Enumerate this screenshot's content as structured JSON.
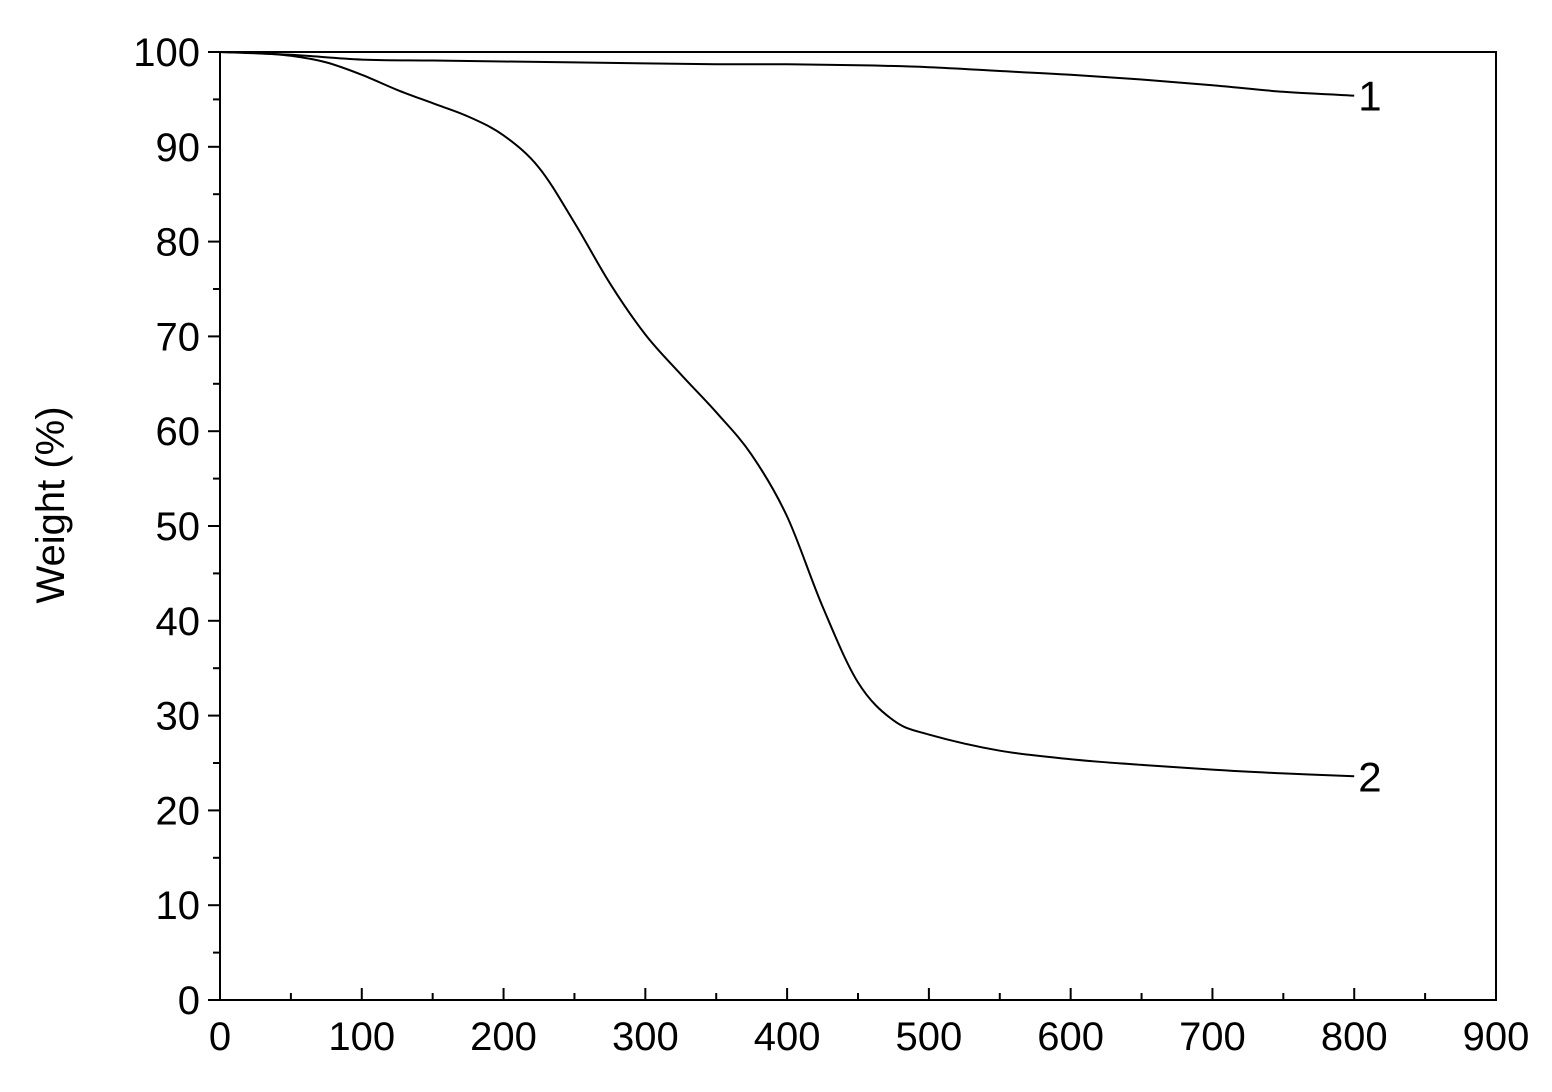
{
  "chart_data": {
    "type": "line",
    "title": "",
    "xlabel": "",
    "ylabel": "Weight (%)",
    "xlim": [
      0,
      900
    ],
    "ylim": [
      0,
      100
    ],
    "x_ticks": [
      0,
      100,
      200,
      300,
      400,
      500,
      600,
      700,
      800,
      900
    ],
    "y_ticks": [
      0,
      10,
      20,
      30,
      40,
      50,
      60,
      70,
      80,
      90,
      100
    ],
    "x_tick_labels": [
      "0",
      "100",
      "200",
      "300",
      "400",
      "500",
      "600",
      "700",
      "800",
      "900"
    ],
    "y_tick_labels": [
      "0",
      "10",
      "20",
      "30",
      "40",
      "50",
      "60",
      "70",
      "80",
      "90",
      "100"
    ],
    "grid": false,
    "colors": {
      "line": "#000000",
      "axis": "#000000"
    },
    "series": [
      {
        "name": "1",
        "label_value": "1",
        "x": [
          0,
          50,
          100,
          150,
          200,
          250,
          300,
          350,
          400,
          450,
          500,
          550,
          600,
          650,
          700,
          750,
          800
        ],
        "y": [
          100,
          99.7,
          99.2,
          99.1,
          99.0,
          98.9,
          98.8,
          98.7,
          98.7,
          98.6,
          98.4,
          98.0,
          97.6,
          97.1,
          96.5,
          95.8,
          95.4
        ]
      },
      {
        "name": "2",
        "label_value": "2",
        "x": [
          0,
          25,
          50,
          75,
          100,
          125,
          150,
          175,
          200,
          225,
          250,
          275,
          300,
          325,
          350,
          375,
          400,
          425,
          450,
          475,
          500,
          550,
          600,
          650,
          700,
          750,
          800
        ],
        "y": [
          100,
          99.9,
          99.6,
          98.9,
          97.6,
          96.0,
          94.6,
          93.2,
          91.2,
          87.8,
          82.0,
          75.6,
          70.2,
          66.0,
          62.0,
          57.5,
          51.0,
          41.5,
          33.5,
          29.5,
          28.0,
          26.3,
          25.4,
          24.8,
          24.3,
          23.9,
          23.6
        ]
      }
    ]
  }
}
